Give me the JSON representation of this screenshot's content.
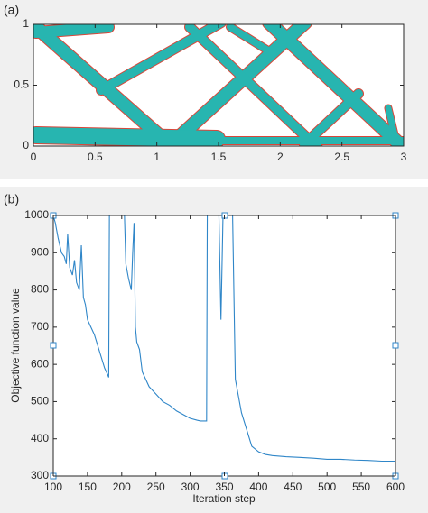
{
  "chart_data": [
    {
      "type": "image",
      "label": "(a)",
      "xlim": [
        0,
        3
      ],
      "ylim": [
        0,
        1
      ],
      "xticks": [
        0,
        0.5,
        1,
        1.5,
        2,
        2.5,
        3
      ],
      "yticks": [
        0,
        0.5,
        1
      ]
    },
    {
      "type": "line",
      "label": "(b)",
      "xlabel": "Iteration step",
      "ylabel": "Objective function value",
      "xlim": [
        100,
        600
      ],
      "ylim": [
        300,
        1000
      ],
      "xticks": [
        100,
        150,
        200,
        250,
        300,
        350,
        400,
        450,
        500,
        550,
        600
      ],
      "yticks": [
        300,
        400,
        500,
        600,
        700,
        800,
        900,
        1000
      ],
      "color": "#2f86c8",
      "x": [
        100,
        103,
        107,
        112,
        116,
        119,
        121,
        124,
        128,
        131,
        134,
        138,
        141,
        144,
        147,
        150,
        155,
        160,
        165,
        170,
        175,
        180,
        181,
        182,
        195,
        204,
        206,
        210,
        214,
        216,
        218,
        220,
        222,
        224,
        226,
        230,
        235,
        240,
        250,
        260,
        270,
        280,
        290,
        300,
        310,
        315,
        324,
        325,
        338,
        342,
        345,
        348,
        352,
        360,
        362,
        366,
        370,
        375,
        380,
        385,
        390,
        400,
        410,
        420,
        440,
        460,
        480,
        500,
        520,
        540,
        560,
        580,
        600
      ],
      "values": [
        1000,
        980,
        940,
        900,
        890,
        870,
        950,
        860,
        840,
        880,
        820,
        800,
        920,
        780,
        760,
        720,
        700,
        680,
        650,
        620,
        590,
        570,
        565,
        1000,
        1000,
        1000,
        870,
        830,
        800,
        900,
        980,
        700,
        660,
        650,
        640,
        580,
        560,
        540,
        520,
        500,
        490,
        475,
        465,
        455,
        450,
        448,
        448,
        1000,
        1000,
        1000,
        720,
        1000,
        1000,
        1000,
        1000,
        560,
        520,
        470,
        440,
        410,
        380,
        365,
        358,
        355,
        352,
        350,
        348,
        345,
        345,
        343,
        342,
        340,
        340
      ]
    }
  ]
}
